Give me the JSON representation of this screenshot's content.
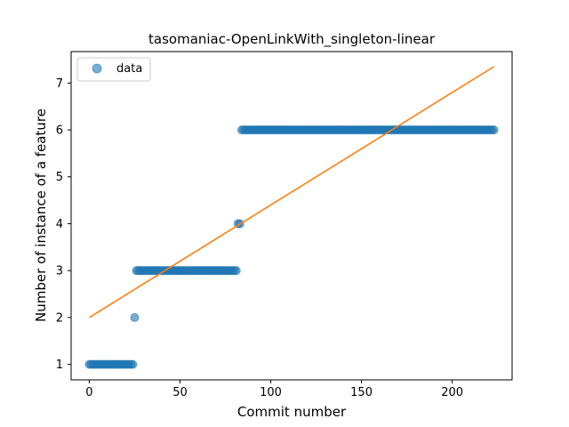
{
  "chart_data": {
    "type": "scatter",
    "title": "tasomaniac-OpenLinkWith_singleton-linear",
    "xlabel": "Commit number",
    "ylabel": "Number of instance of a feature",
    "xlim": [
      -10,
      233
    ],
    "ylim": [
      0.67,
      7.67
    ],
    "xticks": [
      0,
      50,
      100,
      150,
      200
    ],
    "yticks": [
      1,
      2,
      3,
      4,
      5,
      6,
      7
    ],
    "legend": {
      "position": "top-left",
      "entries": [
        "data"
      ]
    },
    "grid": false,
    "series": [
      {
        "name": "data",
        "kind": "points",
        "color": "#1f77b4",
        "runs": [
          {
            "x_start": 0,
            "x_end": 24,
            "y": 1
          },
          {
            "x_start": 25,
            "x_end": 25,
            "y": 2
          },
          {
            "x_start": 26,
            "x_end": 81,
            "y": 3
          },
          {
            "x_start": 82,
            "x_end": 83,
            "y": 4
          },
          {
            "x_start": 84,
            "x_end": 223,
            "y": 6
          }
        ]
      },
      {
        "kind": "line",
        "color": "#ff7f0e",
        "x": [
          0,
          223
        ],
        "y": [
          2.0,
          7.35
        ]
      }
    ]
  }
}
